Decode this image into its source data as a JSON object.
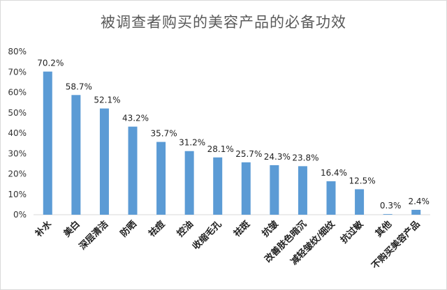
{
  "chart_data": {
    "type": "bar",
    "title": "被调查者购买的美容产品的必备功效",
    "xlabel": "",
    "ylabel": "",
    "ylim": [
      0,
      80
    ],
    "yticks": [
      0,
      10,
      20,
      30,
      40,
      50,
      60,
      70,
      80
    ],
    "ytick_labels": [
      "0%",
      "10%",
      "20%",
      "30%",
      "40%",
      "50%",
      "60%",
      "70%",
      "80%"
    ],
    "categories": [
      "补水",
      "美白",
      "深层清洁",
      "防晒",
      "祛痘",
      "控油",
      "收缩毛孔",
      "祛斑",
      "抗皱",
      "改善肤色暗沉",
      "减轻皱纹/细纹",
      "抗过敏",
      "其他",
      "不购买美容产品"
    ],
    "values": [
      70.2,
      58.7,
      52.1,
      43.2,
      35.7,
      31.2,
      28.1,
      25.7,
      24.3,
      23.8,
      16.4,
      12.5,
      0.3,
      2.4
    ],
    "data_labels": [
      "70.2%",
      "58.7%",
      "52.1%",
      "43.2%",
      "35.7%",
      "31.2%",
      "28.1%",
      "25.7%",
      "24.3%",
      "23.8%",
      "16.4%",
      "12.5%",
      "0.3%",
      "2.4%"
    ],
    "grid": false,
    "legend": "none",
    "bar_color": "#5b9bd5",
    "axis_color": "#d9d9d9"
  }
}
